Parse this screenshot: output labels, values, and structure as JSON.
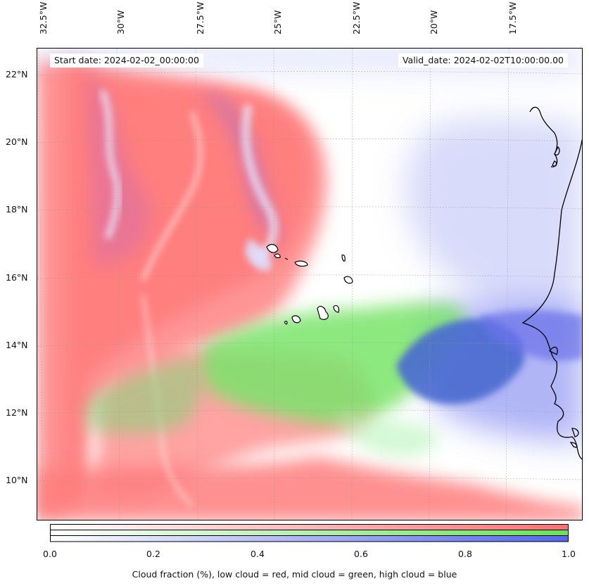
{
  "map": {
    "start_date": "Start date: 2024-02-02_00:00:00",
    "valid_date": "Valid_date: 2024-02-02T10:00:00.00",
    "lon_labels": [
      "32.5°W",
      "30°W",
      "27.5°W",
      "25°W",
      "22.5°W",
      "20°W",
      "17.5°W"
    ],
    "lat_labels": [
      "22°N",
      "20°N",
      "18°N",
      "16°N",
      "14°N",
      "12°N",
      "10°N"
    ],
    "colors": {
      "low": "#ff6f6f",
      "mid": "#66dd55",
      "high": "#5566ee",
      "coast": "#000000"
    },
    "legend": {
      "ticks": [
        "0.0",
        "0.2",
        "0.4",
        "0.6",
        "0.8",
        "1.0"
      ],
      "caption": "Cloud fraction (%), low cloud = red, mid cloud = green, high cloud = blue"
    }
  }
}
